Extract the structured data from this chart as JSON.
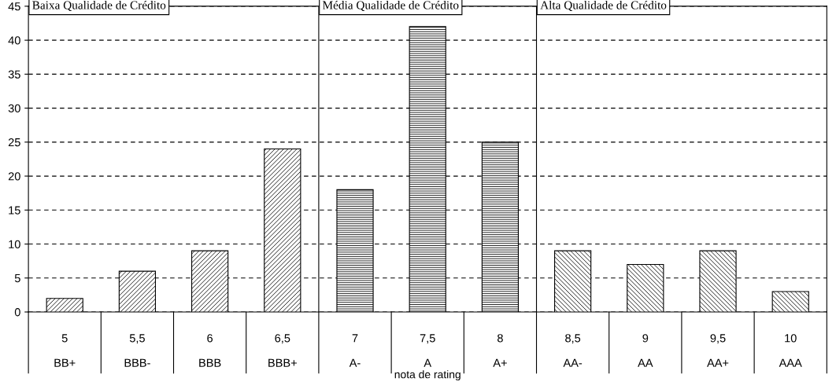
{
  "chart_data": {
    "type": "bar",
    "categories": [
      "5\n\nBB+",
      "5,5\n\nBBB-",
      "6\n\nBBB",
      "6,5\n\nBBB+",
      "7\n\nA-",
      "7,5\n\nA",
      "8\n\nA+",
      "8,5\n\nAA-",
      "9\n\nAA",
      "9,5\n\nAA+",
      "10\n\nAAA"
    ],
    "series": [
      {
        "color": "#000000",
        "values": [
          2,
          6,
          9,
          24,
          null,
          null,
          null,
          null,
          null,
          null,
          null
        ]
      },
      {
        "color": "#000000",
        "values": [
          null,
          null,
          null,
          null,
          18,
          42,
          25,
          null,
          null,
          null,
          null
        ]
      },
      {
        "color": "#000000",
        "values": [
          null,
          null,
          null,
          null,
          null,
          null,
          null,
          9,
          7,
          9,
          3
        ]
      }
    ],
    "annotations": [
      "Baixa Qualidade de Crédito",
      "Média Qualidade de Crédito",
      "Alta Qualidade de Crédito"
    ],
    "xlabel": "nota de rating",
    "ylim": [
      0,
      45
    ],
    "yticks": [
      0,
      5,
      10,
      15,
      20,
      25,
      30,
      35,
      40,
      45
    ],
    "grid": "y"
  }
}
